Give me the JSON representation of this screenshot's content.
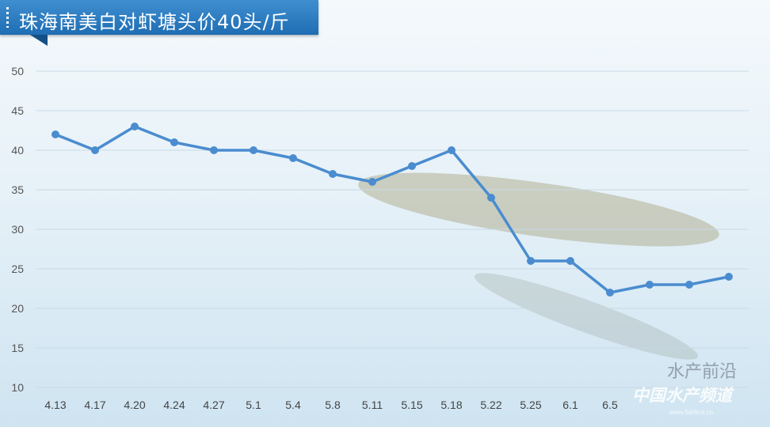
{
  "chart_data": {
    "type": "line",
    "title": "珠海南美白对虾塘头价40头/斤",
    "categories": [
      "4.13",
      "4.17",
      "4.20",
      "4.24",
      "4.27",
      "5.1",
      "5.4",
      "5.8",
      "5.11",
      "5.15",
      "5.18",
      "5.22",
      "5.25",
      "6.1",
      "6.5",
      "",
      "",
      ""
    ],
    "values": [
      42,
      40,
      43,
      41,
      40,
      40,
      39,
      37,
      36,
      38,
      40,
      34,
      26,
      26,
      22,
      23,
      23,
      24
    ],
    "yticks": [
      10,
      15,
      20,
      25,
      30,
      35,
      40,
      45,
      50
    ],
    "ylim": [
      10,
      50
    ],
    "grid": true,
    "legend": "none",
    "line_color": "#4a8ccf"
  },
  "watermark": {
    "line1": "水产前沿",
    "line2": "中国水产频道",
    "line3": "www.fishfirst.cn"
  }
}
